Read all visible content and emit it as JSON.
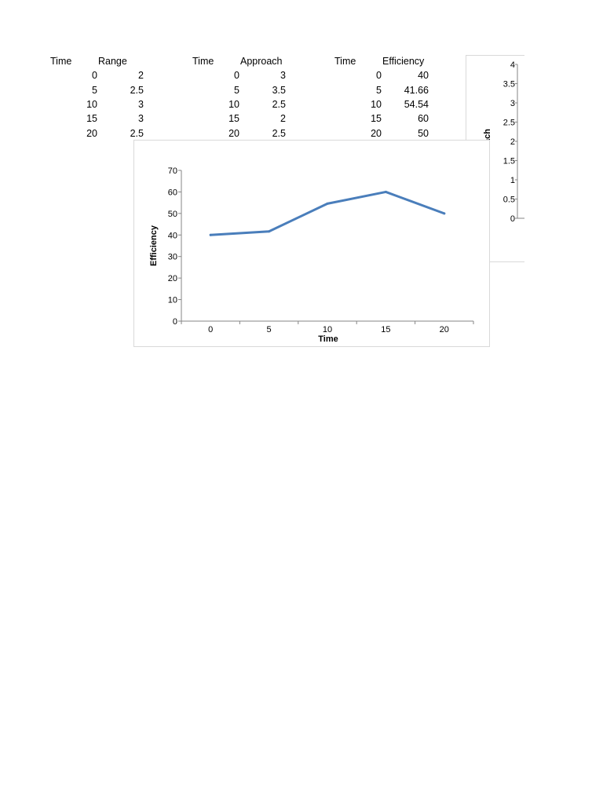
{
  "tables": [
    {
      "headers": [
        "Time",
        "Range"
      ],
      "rows": [
        [
          "0",
          "2"
        ],
        [
          "5",
          "2.5"
        ],
        [
          "10",
          "3"
        ],
        [
          "15",
          "3"
        ],
        [
          "20",
          "2.5"
        ]
      ]
    },
    {
      "headers": [
        "Time",
        "Approach"
      ],
      "rows": [
        [
          "0",
          "3"
        ],
        [
          "5",
          "3.5"
        ],
        [
          "10",
          "2.5"
        ],
        [
          "15",
          "2"
        ],
        [
          "20",
          "2.5"
        ]
      ]
    },
    {
      "headers": [
        "Time",
        "Efficiency"
      ],
      "rows": [
        [
          "0",
          "40"
        ],
        [
          "5",
          "41.66"
        ],
        [
          "10",
          "54.54"
        ],
        [
          "15",
          "60"
        ],
        [
          "20",
          "50"
        ]
      ]
    }
  ],
  "chart_data": [
    {
      "type": "line",
      "title": "",
      "xlabel": "Time",
      "ylabel": "Efficiency",
      "categories": [
        "0",
        "5",
        "10",
        "15",
        "20"
      ],
      "series": [
        {
          "values": [
            40,
            41.66,
            54.54,
            60,
            50
          ],
          "color": "#4a7ebb"
        }
      ],
      "ylim": [
        0,
        70
      ],
      "yticks": [
        "0",
        "10",
        "20",
        "30",
        "40",
        "50",
        "60",
        "70"
      ],
      "grid": false
    },
    {
      "type": "line",
      "title": "",
      "ylabel": "ach",
      "ylim": [
        0,
        4
      ],
      "yticks": [
        "0",
        "0.5",
        "1",
        "1.5",
        "2",
        "2.5",
        "3",
        "3.5",
        "4"
      ],
      "grid": false
    }
  ]
}
